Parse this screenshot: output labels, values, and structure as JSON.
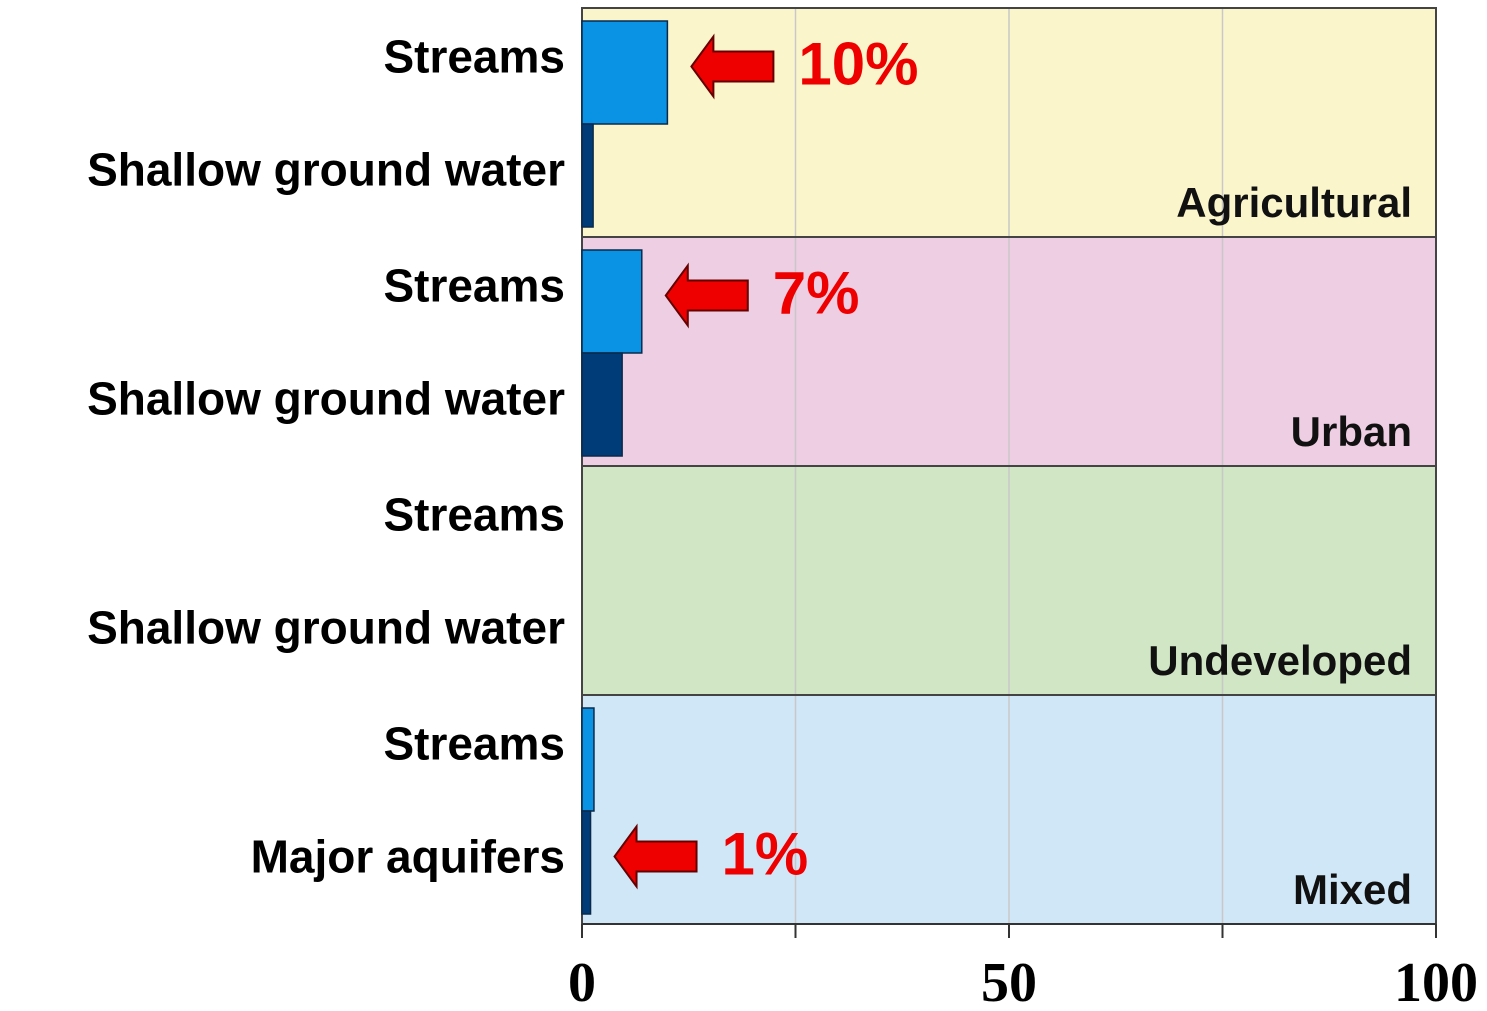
{
  "chart_data": {
    "type": "grouped-hbar",
    "xlim": [
      0,
      100
    ],
    "xticks": [
      0,
      50,
      100
    ],
    "xminorticks": [
      25,
      75
    ],
    "grid": true,
    "bar_colors": [
      "#0a93e4",
      "#003c78"
    ],
    "annotation_color": "#ee0000",
    "groups": [
      {
        "name": "Agricultural",
        "color": "#faf5cb",
        "categories": [
          "Streams",
          "Shallow ground water"
        ],
        "values": [
          10,
          1.3
        ],
        "value_labels": [
          "10%",
          null
        ]
      },
      {
        "name": "Urban",
        "color": "#eecee3",
        "categories": [
          "Streams",
          "Shallow ground water"
        ],
        "values": [
          7,
          4.7
        ],
        "value_labels": [
          "7%",
          null
        ]
      },
      {
        "name": "Undeveloped",
        "color": "#d0e6c4",
        "categories": [
          "Streams",
          "Shallow ground water"
        ],
        "values": [
          0,
          0
        ],
        "value_labels": [
          null,
          null
        ]
      },
      {
        "name": "Mixed",
        "color": "#d0e7f7",
        "categories": [
          "Streams",
          "Major aquifers"
        ],
        "values": [
          1.4,
          1
        ],
        "value_labels": [
          null,
          "1%"
        ]
      }
    ]
  }
}
